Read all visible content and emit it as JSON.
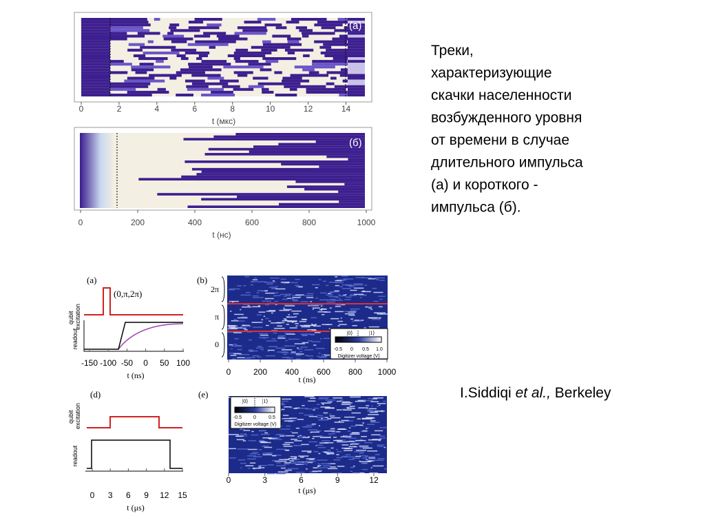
{
  "caption": {
    "lines": [
      "Треки,",
      "характеризующие",
      "скачки населенности",
      "возбужденного уровня",
      "от времени в случае",
      "длительного импульса",
      "(а) и короткого -",
      "импульса (б)."
    ]
  },
  "citation": {
    "author": "I.Siddiqi",
    "etal": "et al.,",
    "place": "Berkeley"
  },
  "top_figure": {
    "panel_a": {
      "label": "(а)",
      "xticks": [
        "0",
        "2",
        "4",
        "6",
        "8",
        "10",
        "12",
        "14"
      ],
      "xlabel": "t (мкс)"
    },
    "panel_b": {
      "label": "(б)",
      "xticks": [
        "0",
        "200",
        "400",
        "600",
        "800",
        "1000"
      ],
      "xlabel": "t (нс)"
    }
  },
  "bottom_figure": {
    "panel_a": {
      "label": "(a)",
      "pulse_label": "(0,π,2π)",
      "ylabel_top": [
        "qubit",
        "excitation"
      ],
      "ylabel_bottom": "readout",
      "xticks": [
        "-150",
        "-100",
        "-50",
        "0",
        "50",
        "100"
      ],
      "xlabel": "t (ns)"
    },
    "panel_b": {
      "label": "(b)",
      "yticks": [
        "2π",
        "π",
        "0"
      ],
      "xticks": [
        "0",
        "200",
        "400",
        "600",
        "800",
        "1000"
      ],
      "xlabel": "t (ns)",
      "colorbar": {
        "state0": "|0⟩",
        "state1": "|1⟩",
        "ticks": [
          "-0.5",
          "0",
          "0.5",
          "1.0"
        ],
        "label": "Digitizer voltage (V)"
      }
    },
    "panel_d": {
      "label": "(d)",
      "ylabel_top": [
        "qubit",
        "excitation"
      ],
      "ylabel_bottom": "readout",
      "xticks": [
        "0",
        "3",
        "6",
        "9",
        "12",
        "15"
      ],
      "xlabel": "t (μs)"
    },
    "panel_e": {
      "label": "(e)",
      "xticks": [
        "0",
        "3",
        "6",
        "9",
        "12"
      ],
      "xlabel": "t (μs)",
      "colorbar": {
        "state0": "|0⟩",
        "state1": "|1⟩",
        "ticks": [
          "-0.5",
          "0",
          "0.5"
        ],
        "label": "Digitizer voltage (V)"
      }
    }
  }
}
